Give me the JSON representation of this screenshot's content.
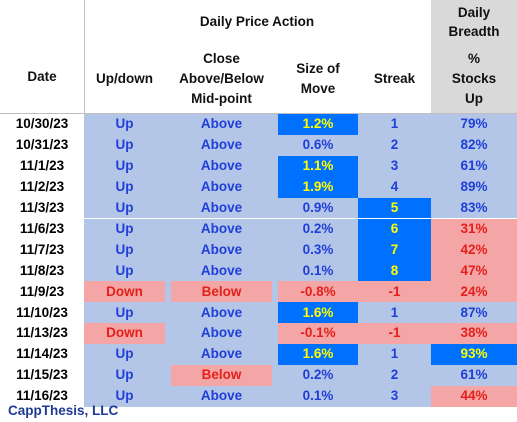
{
  "header": {
    "group_title": "Daily Price Action",
    "breadth_title": "Daily Breadth",
    "col_date": "Date",
    "col_updown": "Up/down",
    "col_close": "Close Above/Below Mid-point",
    "col_size": "Size of Move",
    "col_streak": "Streak",
    "col_pct": "% Stocks Up"
  },
  "colors": {
    "light_blue": "#b4c6e7",
    "light_red": "#f4a6a6",
    "bright_blue": "#0070ff",
    "yellow_text": "#ffff00",
    "blue_text": "#1f3fd8",
    "red_text": "#e3201b",
    "grey_header": "#d9d9d9"
  },
  "rows": [
    {
      "date": "10/30/23",
      "updown": "Up",
      "close": "Above",
      "size": "1.2%",
      "streak": "1",
      "pct": "79%"
    },
    {
      "date": "10/31/23",
      "updown": "Up",
      "close": "Above",
      "size": "0.6%",
      "streak": "2",
      "pct": "82%"
    },
    {
      "date": "11/1/23",
      "updown": "Up",
      "close": "Above",
      "size": "1.1%",
      "streak": "3",
      "pct": "61%"
    },
    {
      "date": "11/2/23",
      "updown": "Up",
      "close": "Above",
      "size": "1.9%",
      "streak": "4",
      "pct": "89%"
    },
    {
      "date": "11/3/23",
      "updown": "Up",
      "close": "Above",
      "size": "0.9%",
      "streak": "5",
      "pct": "83%"
    },
    {
      "date": "11/6/23",
      "updown": "Up",
      "close": "Above",
      "size": "0.2%",
      "streak": "6",
      "pct": "31%"
    },
    {
      "date": "11/7/23",
      "updown": "Up",
      "close": "Above",
      "size": "0.3%",
      "streak": "7",
      "pct": "42%"
    },
    {
      "date": "11/8/23",
      "updown": "Up",
      "close": "Above",
      "size": "0.1%",
      "streak": "8",
      "pct": "47%"
    },
    {
      "date": "11/9/23",
      "updown": "Down",
      "close": "Below",
      "size": "-0.8%",
      "streak": "-1",
      "pct": "24%"
    },
    {
      "date": "11/10/23",
      "updown": "Up",
      "close": "Above",
      "size": "1.6%",
      "streak": "1",
      "pct": "87%"
    },
    {
      "date": "11/13/23",
      "updown": "Down",
      "close": "Above",
      "size": "-0.1%",
      "streak": "-1",
      "pct": "38%"
    },
    {
      "date": "11/14/23",
      "updown": "Up",
      "close": "Above",
      "size": "1.6%",
      "streak": "1",
      "pct": "93%"
    },
    {
      "date": "11/15/23",
      "updown": "Up",
      "close": "Below",
      "size": "0.2%",
      "streak": "2",
      "pct": "61%"
    },
    {
      "date": "11/16/23",
      "updown": "Up",
      "close": "Above",
      "size": "0.1%",
      "streak": "3",
      "pct": "44%"
    }
  ],
  "footer": {
    "credit": "CappThesis, LLC"
  }
}
